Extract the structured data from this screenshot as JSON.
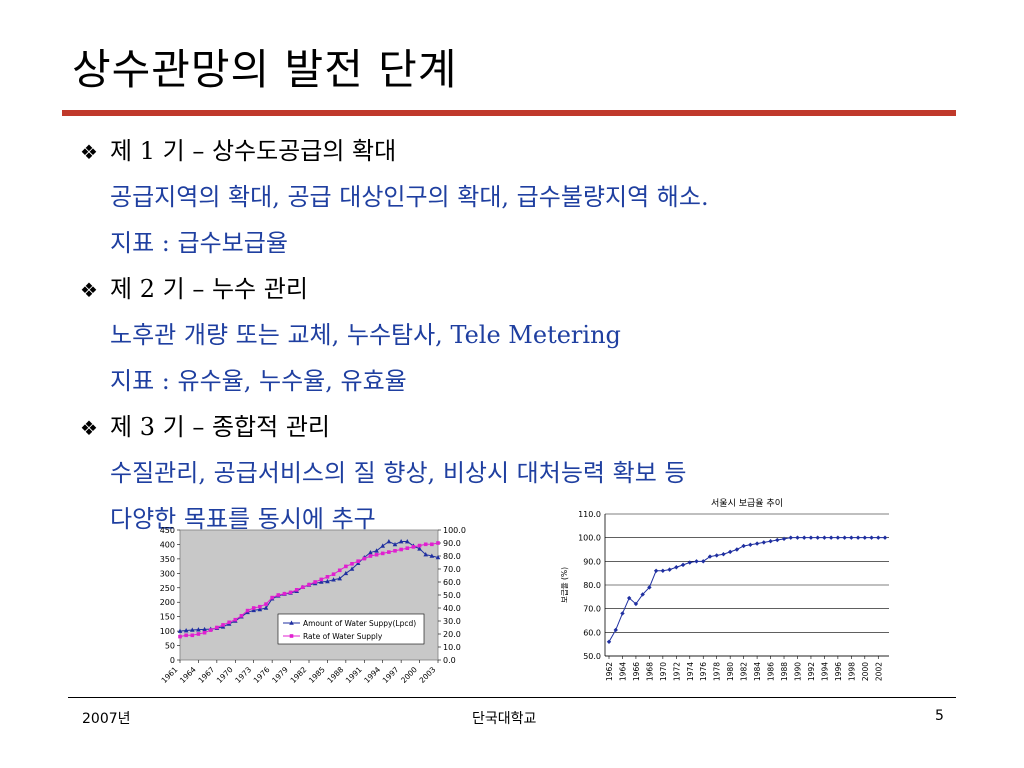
{
  "slide": {
    "title": "상수관망의 발전 단계",
    "sections": [
      {
        "heading": "제 1 기 – 상수도공급의 확대",
        "lines": [
          "공급지역의 확대, 공급 대상인구의 확대, 급수불량지역 해소.",
          "지표 : 급수보급율"
        ]
      },
      {
        "heading": "제 2 기 – 누수 관리",
        "lines": [
          "노후관 개량 또는 교체, 누수탐사, Tele Metering",
          "지표 : 유수율, 누수율, 유효율"
        ]
      },
      {
        "heading": "제 3 기 – 종합적 관리",
        "lines": [
          "수질관리, 공급서비스의 질 향상, 비상시 대처능력 확보 등",
          "다양한 목표를 동시에 추구"
        ]
      }
    ]
  },
  "footer": {
    "left": "2007년",
    "center": "단국대학교",
    "page": "5"
  },
  "chart_data": [
    {
      "type": "line",
      "title": "",
      "x": [
        1961,
        1962,
        1963,
        1964,
        1965,
        1966,
        1967,
        1968,
        1969,
        1970,
        1971,
        1972,
        1973,
        1974,
        1975,
        1976,
        1977,
        1978,
        1979,
        1980,
        1981,
        1982,
        1983,
        1984,
        1985,
        1986,
        1987,
        1988,
        1989,
        1990,
        1991,
        1992,
        1993,
        1994,
        1995,
        1996,
        1997,
        1998,
        1999,
        2000,
        2001,
        2002,
        2003
      ],
      "x_ticks": [
        "1961",
        "1964",
        "1967",
        "1970",
        "1973",
        "1976",
        "1979",
        "1982",
        "1985",
        "1988",
        "1991",
        "1994",
        "1997",
        "2000",
        "2003"
      ],
      "y_left_ticks": [
        "0",
        "50",
        "100",
        "150",
        "200",
        "250",
        "300",
        "350",
        "400",
        "450"
      ],
      "y_right_ticks": [
        "0.0",
        "10.0",
        "20.0",
        "30.0",
        "40.0",
        "50.0",
        "60.0",
        "70.0",
        "80.0",
        "90.0",
        "100.0"
      ],
      "ylim_left": [
        0,
        450
      ],
      "ylim_right": [
        0,
        100
      ],
      "legend_position": "center-right",
      "series": [
        {
          "name": "Amount of Water Suppy(Lpcd)",
          "axis": "left",
          "color": "#1f2fa0",
          "values": [
            100,
            102,
            104,
            105,
            106,
            107,
            110,
            115,
            125,
            135,
            150,
            165,
            172,
            175,
            180,
            212,
            222,
            228,
            232,
            238,
            252,
            260,
            265,
            270,
            272,
            278,
            282,
            300,
            315,
            335,
            355,
            372,
            378,
            395,
            410,
            400,
            410,
            410,
            395,
            385,
            365,
            360,
            355
          ]
        },
        {
          "name": "Rate of Water Supply",
          "axis": "right",
          "color": "#e020d0",
          "values": [
            18,
            19,
            19,
            20,
            21,
            23,
            25,
            27,
            29,
            31,
            34,
            38,
            40,
            41,
            43,
            48,
            50,
            51,
            52,
            54,
            56,
            58,
            60,
            62,
            64,
            66,
            69,
            72,
            74,
            76,
            78,
            80,
            81,
            82,
            83,
            84,
            85,
            86,
            87,
            88,
            89,
            89,
            90
          ]
        }
      ]
    },
    {
      "type": "line",
      "title": "서울시 보급율 추이",
      "ylabel": "보급율 (%)",
      "x": [
        1962,
        1963,
        1964,
        1965,
        1966,
        1967,
        1968,
        1969,
        1970,
        1971,
        1972,
        1973,
        1974,
        1975,
        1976,
        1977,
        1978,
        1979,
        1980,
        1981,
        1982,
        1983,
        1984,
        1985,
        1986,
        1987,
        1988,
        1989,
        1990,
        1991,
        1992,
        1993,
        1994,
        1995,
        1996,
        1997,
        1998,
        1999,
        2000,
        2001,
        2002,
        2003
      ],
      "x_ticks": [
        "1962",
        "1964",
        "1966",
        "1968",
        "1970",
        "1972",
        "1974",
        "1976",
        "1978",
        "1980",
        "1982",
        "1984",
        "1986",
        "1988",
        "1990",
        "1992",
        "1994",
        "1996",
        "1998",
        "2000",
        "2002"
      ],
      "y_ticks": [
        "50.0",
        "60.0",
        "70.0",
        "80.0",
        "90.0",
        "100.0",
        "110.0"
      ],
      "ylim": [
        50,
        110
      ],
      "series": [
        {
          "color": "#1f2fa0",
          "values": [
            56,
            61,
            68,
            74.5,
            72,
            76,
            79,
            86,
            86,
            86.5,
            87.5,
            88.5,
            89.5,
            90,
            90,
            92,
            92.5,
            93,
            94,
            95,
            96.5,
            97,
            97.5,
            98,
            98.5,
            99,
            99.5,
            100,
            100,
            100,
            100,
            100,
            100,
            100,
            100,
            100,
            100,
            100,
            100,
            100,
            100,
            100
          ]
        }
      ]
    }
  ]
}
